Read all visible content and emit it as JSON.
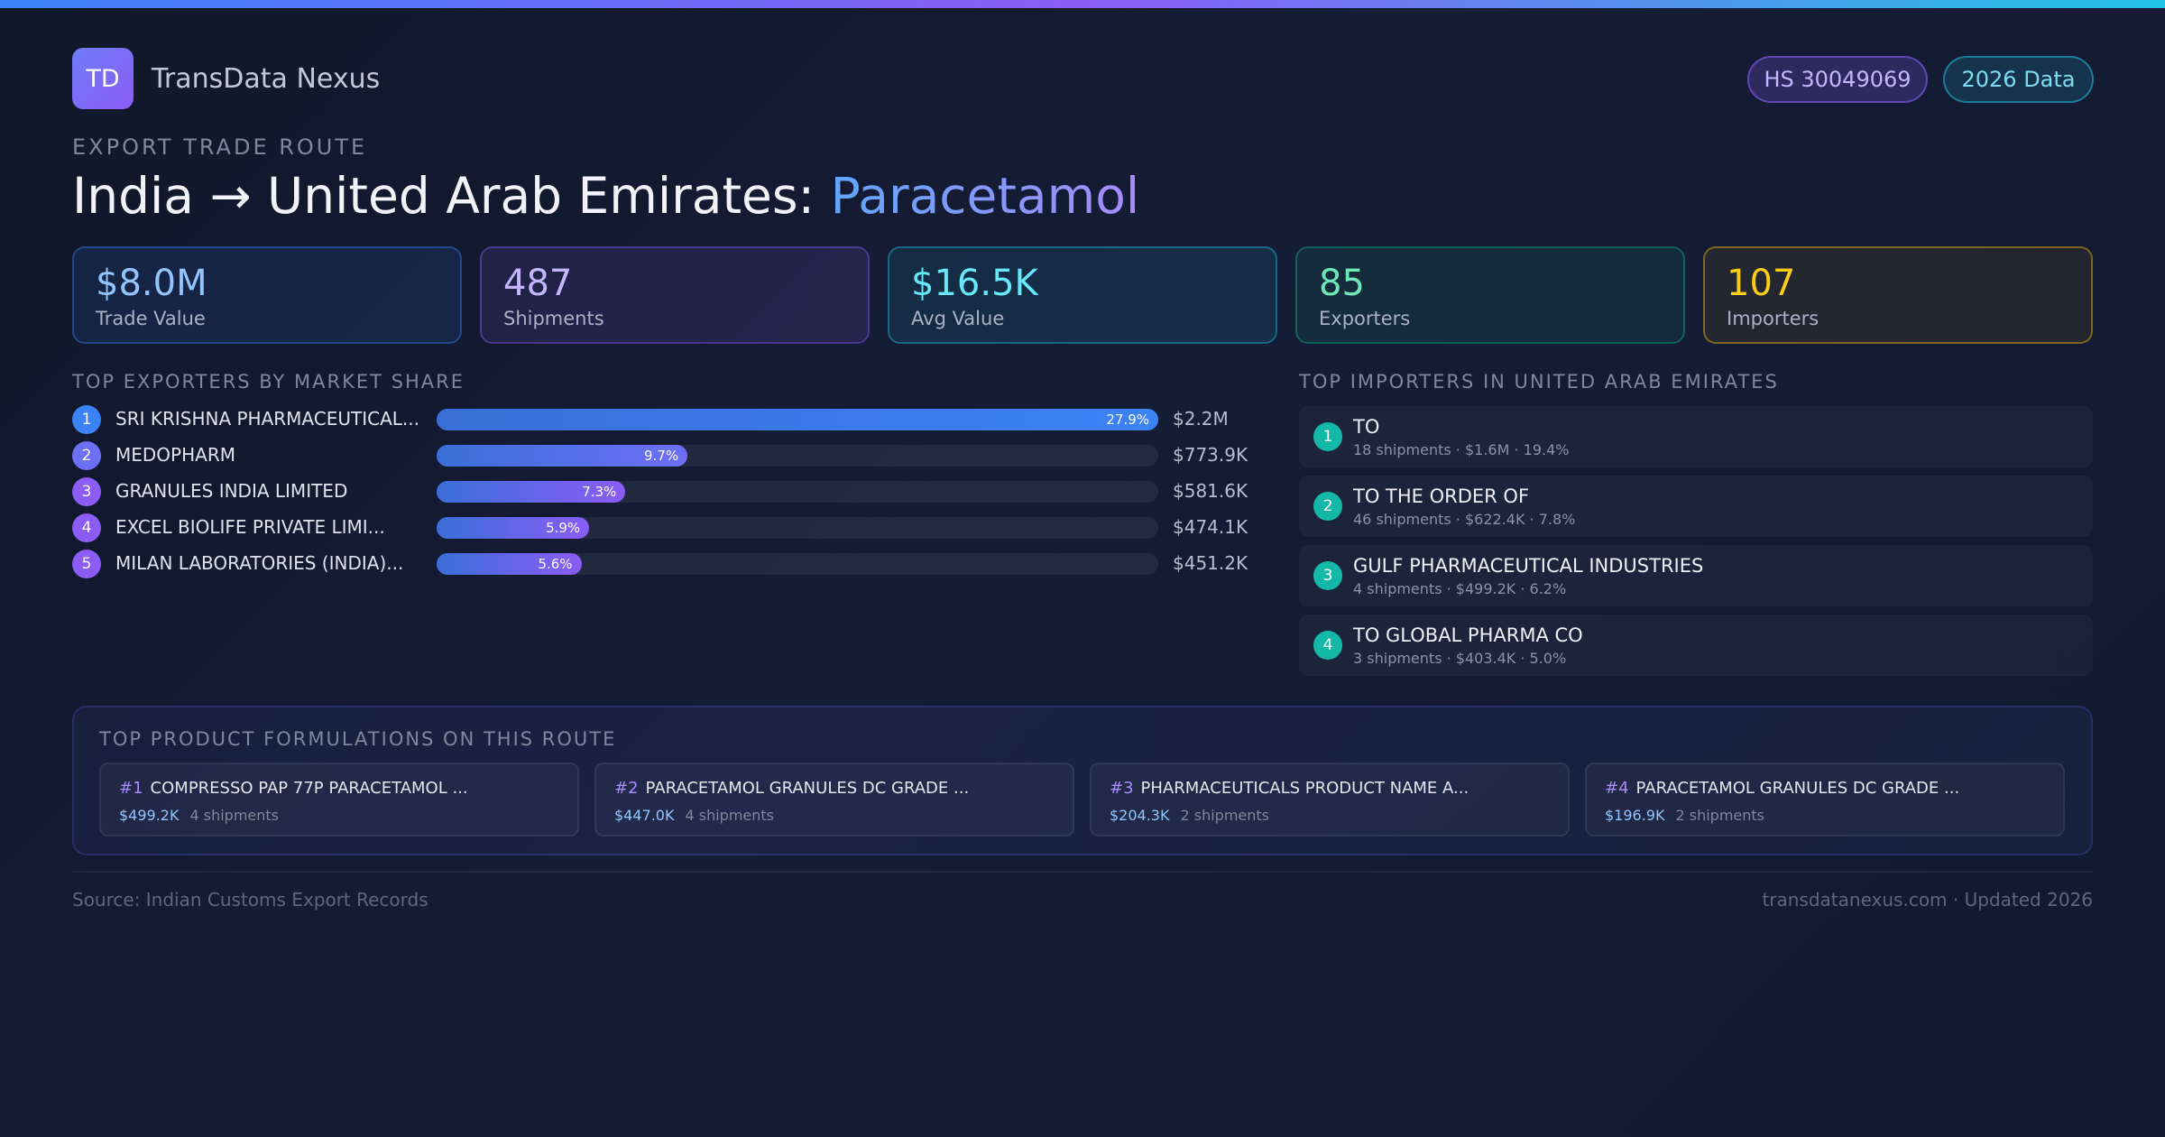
{
  "brand": {
    "logo_text": "TD",
    "name": "TransData Nexus"
  },
  "badges": {
    "hs_code": "HS 30049069",
    "year": "2026 Data"
  },
  "header": {
    "eyebrow": "EXPORT TRADE ROUTE",
    "title_route": "India → United Arab Emirates: ",
    "title_product": "Paracetamol"
  },
  "stats": [
    {
      "value": "$8.0M",
      "label": "Trade Value"
    },
    {
      "value": "487",
      "label": "Shipments"
    },
    {
      "value": "$16.5K",
      "label": "Avg Value"
    },
    {
      "value": "85",
      "label": "Exporters"
    },
    {
      "value": "107",
      "label": "Importers"
    }
  ],
  "exporters": {
    "title": "TOP EXPORTERS BY MARKET SHARE",
    "items": [
      {
        "rank": "1",
        "name": "SRI KRISHNA PHARMACEUTICAL...",
        "share": 27.9,
        "share_label": "27.9%",
        "value": "$2.2M",
        "color": "#3b82f6"
      },
      {
        "rank": "2",
        "name": "MEDOPHARM",
        "share": 9.7,
        "share_label": "9.7%",
        "value": "$773.9K",
        "color": "#6d6ff5"
      },
      {
        "rank": "3",
        "name": "GRANULES INDIA LIMITED",
        "share": 7.3,
        "share_label": "7.3%",
        "value": "$581.6K",
        "color": "#8b5cf6"
      },
      {
        "rank": "4",
        "name": "EXCEL BIOLIFE PRIVATE LIMI...",
        "share": 5.9,
        "share_label": "5.9%",
        "value": "$474.1K",
        "color": "#8b5cf6"
      },
      {
        "rank": "5",
        "name": "MILAN LABORATORIES (INDIA)...",
        "share": 5.6,
        "share_label": "5.6%",
        "value": "$451.2K",
        "color": "#8b5cf6"
      }
    ]
  },
  "importers": {
    "title": "TOP IMPORTERS IN UNITED ARAB EMIRATES",
    "items": [
      {
        "rank": "1",
        "name": "TO",
        "meta": "18 shipments · $1.6M · 19.4%"
      },
      {
        "rank": "2",
        "name": "TO THE ORDER OF",
        "meta": "46 shipments · $622.4K · 7.8%"
      },
      {
        "rank": "3",
        "name": "GULF PHARMACEUTICAL INDUSTRIES",
        "meta": "4 shipments · $499.2K · 6.2%"
      },
      {
        "rank": "4",
        "name": "TO GLOBAL PHARMA CO",
        "meta": "3 shipments · $403.4K · 5.0%"
      }
    ]
  },
  "formulations": {
    "title": "TOP PRODUCT FORMULATIONS ON THIS ROUTE",
    "items": [
      {
        "num": "#1",
        "name": "COMPRESSO PAP 77P PARACETAMOL ...",
        "value": "$499.2K",
        "shipments": "4 shipments"
      },
      {
        "num": "#2",
        "name": "PARACETAMOL GRANULES DC GRADE ...",
        "value": "$447.0K",
        "shipments": "4 shipments"
      },
      {
        "num": "#3",
        "name": "PHARMACEUTICALS PRODUCT NAME A...",
        "value": "$204.3K",
        "shipments": "2 shipments"
      },
      {
        "num": "#4",
        "name": "PARACETAMOL GRANULES DC GRADE ...",
        "value": "$196.9K",
        "shipments": "2 shipments"
      }
    ]
  },
  "footer": {
    "source": "Source: Indian Customs Export Records",
    "site": "transdatanexus.com · Updated 2026"
  }
}
